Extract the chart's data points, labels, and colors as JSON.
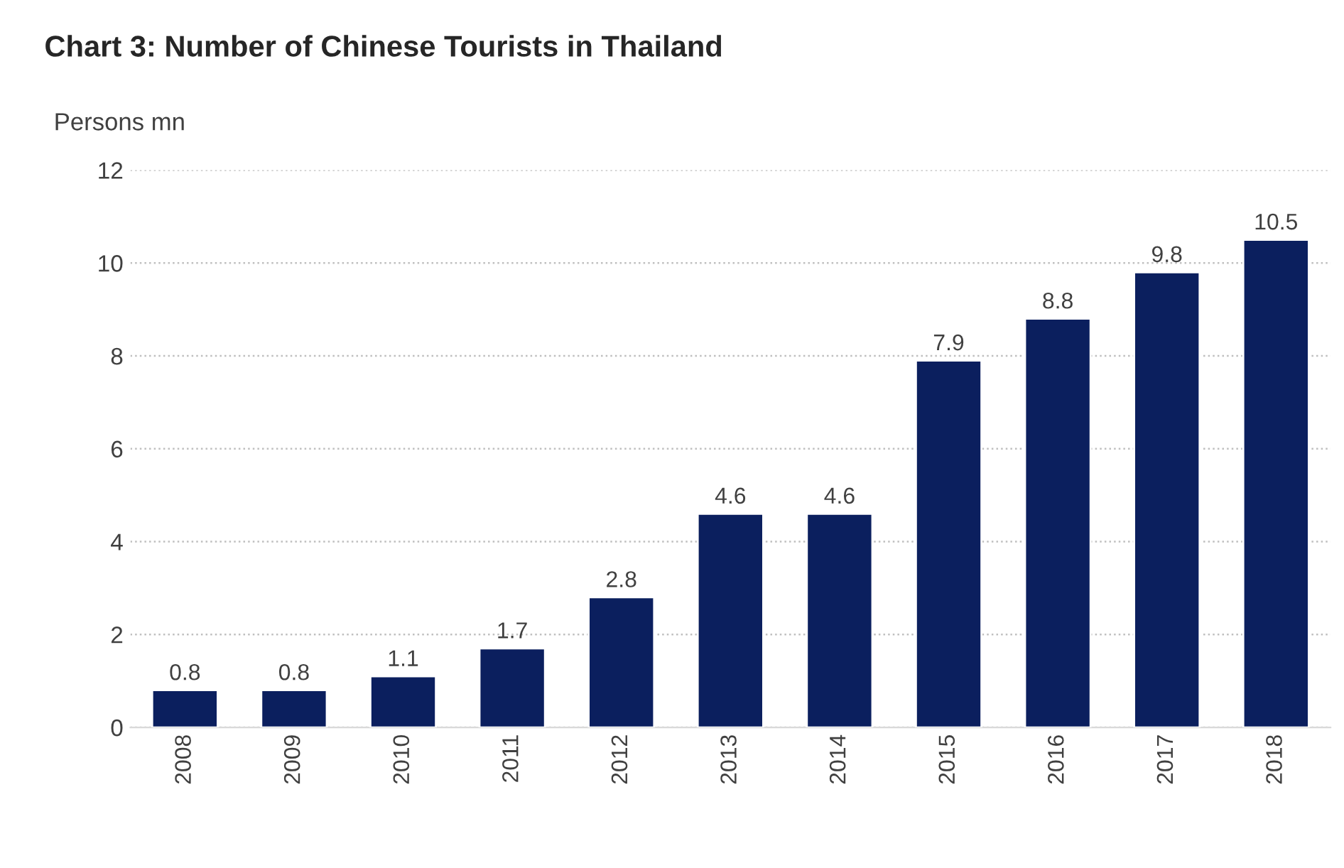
{
  "chart_data": {
    "type": "bar",
    "title": "Chart 3: Number of Chinese Tourists in Thailand",
    "ylabel": "Persons mn",
    "categories": [
      "2008",
      "2009",
      "2010",
      "2011",
      "2012",
      "2013",
      "2014",
      "2015",
      "2016",
      "2017",
      "2018"
    ],
    "values": [
      0.8,
      0.8,
      1.1,
      1.7,
      2.8,
      4.6,
      4.6,
      7.9,
      8.8,
      9.8,
      10.5
    ],
    "color": "#0b1f5e",
    "ylim": [
      0,
      12
    ],
    "yticks": [
      0,
      2,
      4,
      6,
      8,
      10,
      12
    ],
    "grid": "y",
    "data_labels": true
  }
}
